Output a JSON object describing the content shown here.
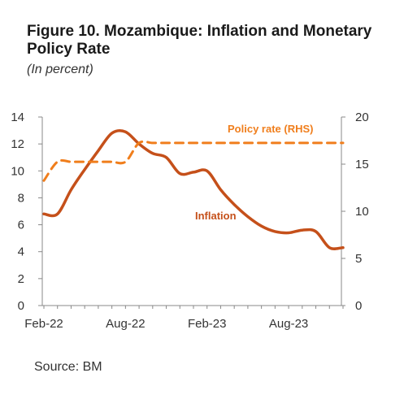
{
  "chart_data": {
    "type": "line",
    "title": "Figure 10. Mozambique: Inflation and Monetary Policy Rate",
    "subtitle": "(In percent)",
    "source": "Source: BM",
    "x_range": [
      "2022-02",
      "2023-12"
    ],
    "x_ticks": [
      "Feb-22",
      "Aug-22",
      "Feb-23",
      "Aug-23"
    ],
    "y_left": {
      "ylim": [
        0,
        14
      ],
      "ticks": [
        "0",
        "2",
        "4",
        "6",
        "8",
        "10",
        "12",
        "14"
      ]
    },
    "y_right": {
      "ylim": [
        0,
        20
      ],
      "ticks": [
        "0",
        "5",
        "10",
        "15",
        "20"
      ]
    },
    "series": [
      {
        "name": "Inflation",
        "axis": "left",
        "style": "solid",
        "color": "#C5501A",
        "x": [
          "2022-02",
          "2022-03",
          "2022-04",
          "2022-05",
          "2022-06",
          "2022-07",
          "2022-08",
          "2022-09",
          "2022-10",
          "2022-11",
          "2022-12",
          "2023-01",
          "2023-02",
          "2023-03",
          "2023-04",
          "2023-05",
          "2023-06",
          "2023-07",
          "2023-08",
          "2023-09",
          "2023-10",
          "2023-11",
          "2023-12"
        ],
        "values": [
          6.8,
          6.8,
          8.6,
          10.1,
          11.5,
          12.8,
          12.9,
          12.0,
          11.3,
          11.0,
          9.8,
          9.9,
          10.0,
          8.6,
          7.5,
          6.6,
          5.9,
          5.5,
          5.4,
          5.6,
          5.5,
          4.3,
          4.3
        ]
      },
      {
        "name": "Policy rate (RHS)",
        "axis": "right",
        "style": "dashed",
        "color": "#F07E1C",
        "x": [
          "2022-02",
          "2022-03",
          "2022-04",
          "2022-05",
          "2022-06",
          "2022-07",
          "2022-08",
          "2022-09",
          "2022-10",
          "2022-11",
          "2022-12",
          "2023-01",
          "2023-02",
          "2023-03",
          "2023-04",
          "2023-05",
          "2023-06",
          "2023-07",
          "2023-08",
          "2023-09",
          "2023-10",
          "2023-11",
          "2023-12"
        ],
        "values": [
          13.25,
          15.25,
          15.25,
          15.25,
          15.25,
          15.25,
          15.25,
          17.25,
          17.25,
          17.25,
          17.25,
          17.25,
          17.25,
          17.25,
          17.25,
          17.25,
          17.25,
          17.25,
          17.25,
          17.25,
          17.25,
          17.25,
          17.25
        ]
      }
    ],
    "annotations": [
      "Inflation",
      "Policy rate (RHS)"
    ],
    "grid": false
  }
}
